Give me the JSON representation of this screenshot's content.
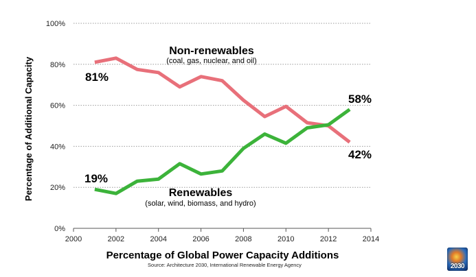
{
  "chart_data": {
    "type": "line",
    "title": "Percentage of Global Power Capacity Additions",
    "xlabel": "Percentage of Global Power Capacity Additions",
    "ylabel": "Percentage of Additional Capacity",
    "source": "Source: Architecture 2030, International Renewable Energy Agency",
    "xlim": [
      2000,
      2014
    ],
    "ylim": [
      0,
      100
    ],
    "x_ticks": [
      "2000",
      "2002",
      "2004",
      "2006",
      "2008",
      "2010",
      "2012",
      "2014"
    ],
    "y_ticks": [
      "0%",
      "20%",
      "40%",
      "60%",
      "80%",
      "100%"
    ],
    "grid": true,
    "x": [
      2001,
      2002,
      2003,
      2004,
      2005,
      2006,
      2007,
      2008,
      2009,
      2010,
      2011,
      2012,
      2013
    ],
    "series": [
      {
        "name": "Non-renewables",
        "subtitle": "(coal, gas, nuclear, and oil)",
        "color": "#e8707a",
        "values": [
          81,
          83,
          77.5,
          76,
          69,
          74,
          72,
          62.5,
          54.5,
          59.5,
          51.5,
          50,
          42
        ],
        "start_label": "81%",
        "end_label": "42%"
      },
      {
        "name": "Renewables",
        "subtitle": "(solar, wind, biomass, and hydro)",
        "color": "#3cb33a",
        "values": [
          19,
          17,
          23,
          24,
          31.5,
          26.5,
          28,
          39,
          46,
          41.5,
          49,
          50.5,
          58
        ],
        "start_label": "19%",
        "end_label": "58%"
      }
    ]
  },
  "logo": {
    "text": "2030"
  }
}
